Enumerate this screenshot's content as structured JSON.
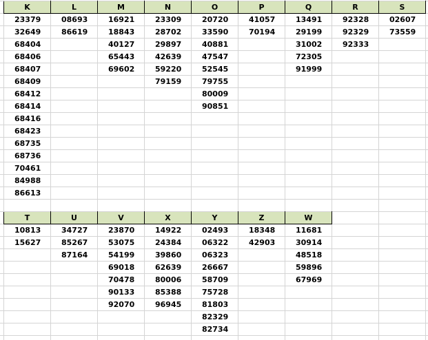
{
  "tables": [
    {
      "rows": 15,
      "columns": [
        {
          "header": "K",
          "values": [
            "23379",
            "32649",
            "68404",
            "68406",
            "68407",
            "68409",
            "68412",
            "68414",
            "68416",
            "68423",
            "68735",
            "68736",
            "70461",
            "84988",
            "86613"
          ]
        },
        {
          "header": "L",
          "values": [
            "08693",
            "86619"
          ]
        },
        {
          "header": "M",
          "values": [
            "16921",
            "18843",
            "40127",
            "65443",
            "69602"
          ]
        },
        {
          "header": "N",
          "values": [
            "23309",
            "28702",
            "29897",
            "42639",
            "59220",
            "79159"
          ]
        },
        {
          "header": "O",
          "values": [
            "20720",
            "33590",
            "40881",
            "47547",
            "52545",
            "79755",
            "80009",
            "90851"
          ]
        },
        {
          "header": "P",
          "values": [
            "41057",
            "70194"
          ]
        },
        {
          "header": "Q",
          "values": [
            "13491",
            "29199",
            "31002",
            "72305",
            "91999"
          ]
        },
        {
          "header": "R",
          "values": [
            "92328",
            "92329",
            "92333"
          ]
        },
        {
          "header": "S",
          "values": [
            "02607",
            "73559"
          ]
        }
      ]
    },
    {
      "rows": 9,
      "columns": [
        {
          "header": "T",
          "values": [
            "10813",
            "15627"
          ]
        },
        {
          "header": "U",
          "values": [
            "34727",
            "85267",
            "87164"
          ]
        },
        {
          "header": "V",
          "values": [
            "23870",
            "53075",
            "54199",
            "69018",
            "70478",
            "90133",
            "92070"
          ]
        },
        {
          "header": "X",
          "values": [
            "14922",
            "24384",
            "39860",
            "62639",
            "80006",
            "85388",
            "96945"
          ]
        },
        {
          "header": "Y",
          "values": [
            "02493",
            "06322",
            "06323",
            "26667",
            "58709",
            "75728",
            "81803",
            "82329",
            "82734"
          ]
        },
        {
          "header": "Z",
          "values": [
            "18348",
            "42903"
          ]
        },
        {
          "header": "W",
          "values": [
            "11681",
            "30914",
            "48518",
            "59896",
            "67969"
          ]
        }
      ]
    }
  ],
  "colors": {
    "header_bg": "#d8e4bc",
    "gridline": "#d4d4d4",
    "border": "#000000"
  }
}
